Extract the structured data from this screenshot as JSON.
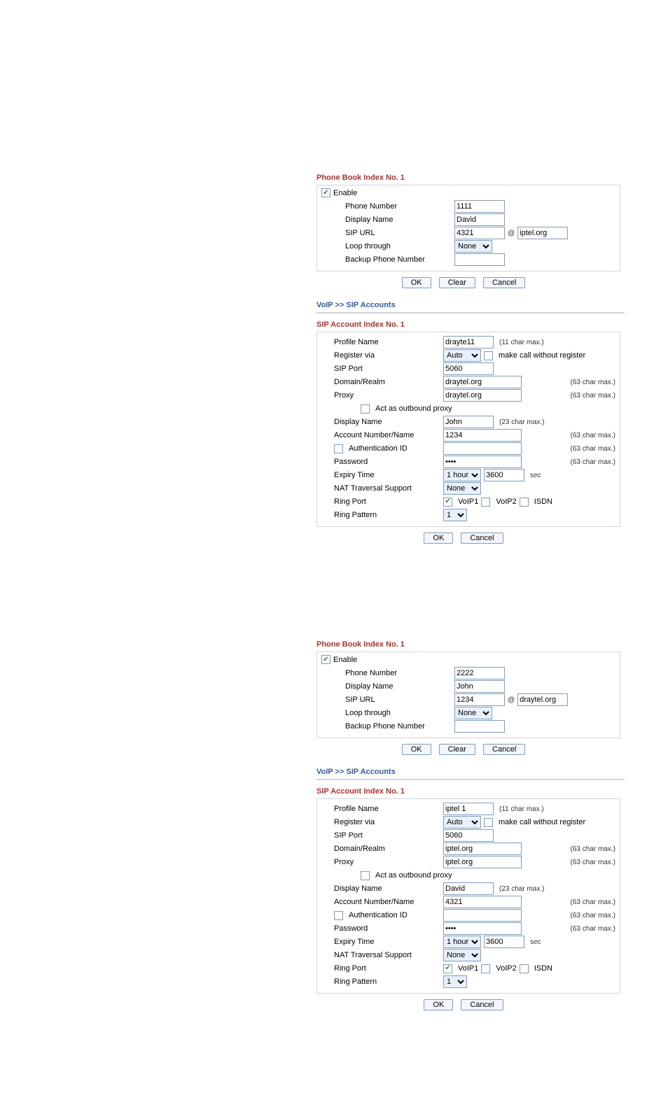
{
  "phonebook1": {
    "title": "Phone Book Index No. 1",
    "enable_label": "Enable",
    "enable_checked": true,
    "labels": {
      "phone_number": "Phone Number",
      "display_name": "Display Name",
      "sip_url": "SIP URL",
      "loop_through": "Loop through",
      "backup": "Backup Phone Number"
    },
    "values": {
      "phone_number": "1111",
      "display_name": "David",
      "sip_url_user": "4321",
      "sip_url_domain": "iptel.org",
      "loop_through": "None",
      "backup": ""
    },
    "buttons": {
      "ok": "OK",
      "clear": "Clear",
      "cancel": "Cancel"
    },
    "at": "@"
  },
  "breadcrumb": "VoIP >> SIP Accounts",
  "sipaccount1": {
    "title": "SIP Account Index No. 1",
    "labels": {
      "profile_name": "Profile Name",
      "register_via": "Register via",
      "make_call": "make call without register",
      "sip_port": "SIP Port",
      "domain": "Domain/Realm",
      "proxy": "Proxy",
      "act_outbound": "Act as outbound proxy",
      "display_name": "Display Name",
      "account_number": "Account Number/Name",
      "auth_id": "Authentication ID",
      "password": "Password",
      "expiry": "Expiry Time",
      "nat": "NAT Traversal Support",
      "ring_port": "Ring Port",
      "ring_pattern": "Ring Pattern",
      "voip1": "VoIP1",
      "voip2": "VoIP2",
      "isdn": "ISDN",
      "sec": "sec"
    },
    "values": {
      "profile_name": "drayte11",
      "register_via": "Auto",
      "make_call_checked": false,
      "sip_port": "5060",
      "domain": "draytel.org",
      "proxy": "draytel.org",
      "act_outbound_checked": false,
      "display_name": "John",
      "account_number": "1234",
      "auth_id_checked": false,
      "auth_id": "",
      "password": "••••",
      "expiry_sel": "1 hour",
      "expiry_val": "3600",
      "nat": "None",
      "voip1_checked": true,
      "voip2_checked": false,
      "isdn_checked": false,
      "ring_pattern": "1"
    },
    "hints": {
      "h11": "(11 char max.)",
      "h63": "(63 char max.)",
      "h23": "(23 char max.)"
    },
    "buttons": {
      "ok": "OK",
      "cancel": "Cancel"
    }
  },
  "phonebook2": {
    "title": "Phone Book Index No. 1",
    "enable_label": "Enable",
    "enable_checked": true,
    "labels": {
      "phone_number": "Phone Number",
      "display_name": "Display Name",
      "sip_url": "SIP URL",
      "loop_through": "Loop through",
      "backup": "Backup Phone Number"
    },
    "values": {
      "phone_number": "2222",
      "display_name": "John",
      "sip_url_user": "1234",
      "sip_url_domain": "draytel.org",
      "loop_through": "None",
      "backup": ""
    },
    "buttons": {
      "ok": "OK",
      "clear": "Clear",
      "cancel": "Cancel"
    },
    "at": "@"
  },
  "sipaccount2": {
    "title": "SIP Account Index No. 1",
    "labels": {
      "profile_name": "Profile Name",
      "register_via": "Register via",
      "make_call": "make call without register",
      "sip_port": "SIP Port",
      "domain": "Domain/Realm",
      "proxy": "Proxy",
      "act_outbound": "Act as outbound proxy",
      "display_name": "Display Name",
      "account_number": "Account Number/Name",
      "auth_id": "Authentication ID",
      "password": "Password",
      "expiry": "Expiry Time",
      "nat": "NAT Traversal Support",
      "ring_port": "Ring Port",
      "ring_pattern": "Ring Pattern",
      "voip1": "VoIP1",
      "voip2": "VoIP2",
      "isdn": "ISDN",
      "sec": "sec"
    },
    "values": {
      "profile_name": "iptel 1",
      "register_via": "Auto",
      "make_call_checked": false,
      "sip_port": "5060",
      "domain": "iptel.org",
      "proxy": "iptel.org",
      "act_outbound_checked": false,
      "display_name": "David",
      "account_number": "4321",
      "auth_id_checked": false,
      "auth_id": "",
      "password": "••••",
      "expiry_sel": "1 hour",
      "expiry_val": "3600",
      "nat": "None",
      "voip1_checked": true,
      "voip2_checked": false,
      "isdn_checked": false,
      "ring_pattern": "1"
    },
    "hints": {
      "h11": "(11 char max.)",
      "h63": "(63 char max.)",
      "h23": "(23 char max.)"
    },
    "buttons": {
      "ok": "OK",
      "cancel": "Cancel"
    }
  }
}
